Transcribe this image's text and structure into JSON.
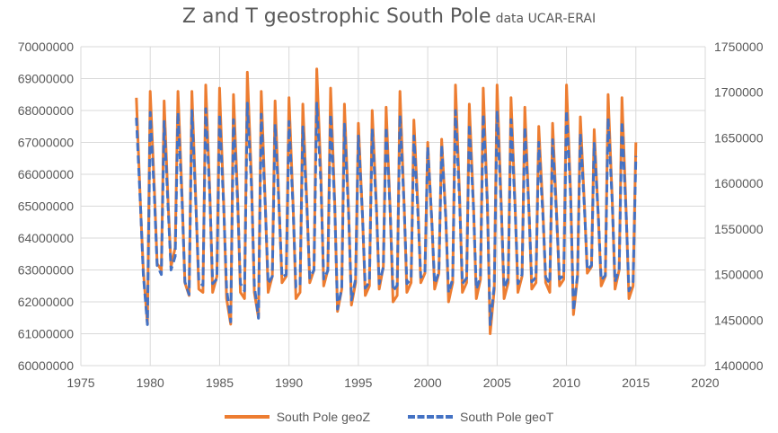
{
  "chart_data": {
    "type": "line",
    "title": "Z and T geostrophic South Pole",
    "subtitle": "data UCAR-ERAI",
    "x_ticks": [
      "1975",
      "1980",
      "1985",
      "1990",
      "1995",
      "2000",
      "2005",
      "2010",
      "2015",
      "2020"
    ],
    "xlim": [
      1975,
      2020
    ],
    "y_left_ticks": [
      "60000000",
      "61000000",
      "62000000",
      "63000000",
      "64000000",
      "65000000",
      "66000000",
      "67000000",
      "68000000",
      "69000000",
      "70000000"
    ],
    "ylim_left": [
      60000000,
      70000000
    ],
    "y_right_ticks": [
      "1400000",
      "1450000",
      "1500000",
      "1550000",
      "1600000",
      "1650000",
      "1700000",
      "1750000"
    ],
    "ylim_right": [
      1400000,
      1750000
    ],
    "grid": true,
    "legend_position": "bottom",
    "series": [
      {
        "name": "South Pole geoZ",
        "axis": "left",
        "color": "#ED7D31",
        "style": "solid",
        "x": [
          1979.0,
          1979.3,
          1979.5,
          1979.8,
          1980.0,
          1980.3,
          1980.5,
          1980.8,
          1981.0,
          1981.3,
          1981.5,
          1981.8,
          1982.0,
          1982.3,
          1982.5,
          1982.8,
          1983.0,
          1983.3,
          1983.5,
          1983.8,
          1984.0,
          1984.3,
          1984.5,
          1984.8,
          1985.0,
          1985.3,
          1985.5,
          1985.8,
          1986.0,
          1986.3,
          1986.5,
          1986.8,
          1987.0,
          1987.3,
          1987.5,
          1987.8,
          1988.0,
          1988.3,
          1988.5,
          1988.8,
          1989.0,
          1989.3,
          1989.5,
          1989.8,
          1990.0,
          1990.3,
          1990.5,
          1990.8,
          1991.0,
          1991.3,
          1991.5,
          1991.8,
          1992.0,
          1992.3,
          1992.5,
          1992.8,
          1993.0,
          1993.3,
          1993.5,
          1993.8,
          1994.0,
          1994.3,
          1994.5,
          1994.8,
          1995.0,
          1995.3,
          1995.5,
          1995.8,
          1996.0,
          1996.3,
          1996.5,
          1996.8,
          1997.0,
          1997.3,
          1997.5,
          1997.8,
          1998.0,
          1998.3,
          1998.5,
          1998.8,
          1999.0,
          1999.3,
          1999.5,
          1999.8,
          2000.0,
          2000.3,
          2000.5,
          2000.8,
          2001.0,
          2001.3,
          2001.5,
          2001.8,
          2002.0,
          2002.3,
          2002.5,
          2002.8,
          2003.0,
          2003.3,
          2003.5,
          2003.8,
          2004.0,
          2004.3,
          2004.5,
          2004.8,
          2005.0,
          2005.3,
          2005.5,
          2005.8,
          2006.0,
          2006.3,
          2006.5,
          2006.8,
          2007.0,
          2007.3,
          2007.5,
          2007.8,
          2008.0,
          2008.3,
          2008.5,
          2008.8,
          2009.0,
          2009.3,
          2009.5,
          2009.8,
          2010.0,
          2010.3,
          2010.5,
          2010.8,
          2011.0,
          2011.3,
          2011.5,
          2011.8,
          2012.0,
          2012.3,
          2012.5,
          2012.8,
          2013.0,
          2013.3,
          2013.5,
          2013.8,
          2014.0,
          2014.3,
          2014.5,
          2014.8,
          2015.0
        ],
        "values": [
          68400000,
          65000000,
          63000000,
          61300000,
          68600000,
          65500000,
          63200000,
          63000000,
          68300000,
          65000000,
          63100000,
          63700000,
          68600000,
          65300000,
          62600000,
          62200000,
          68600000,
          65000000,
          62400000,
          62300000,
          68800000,
          65400000,
          62300000,
          62800000,
          68700000,
          65000000,
          62100000,
          61300000,
          68500000,
          65300000,
          62300000,
          62100000,
          69200000,
          65800000,
          62300000,
          61500000,
          68600000,
          65000000,
          62300000,
          62800000,
          68300000,
          64800000,
          62600000,
          62800000,
          68400000,
          65000000,
          62100000,
          62300000,
          68200000,
          65000000,
          62600000,
          63000000,
          69300000,
          66000000,
          62500000,
          63000000,
          68700000,
          65100000,
          61700000,
          62400000,
          68200000,
          64800000,
          61900000,
          62600000,
          67600000,
          64700000,
          62200000,
          62500000,
          68000000,
          65000000,
          62400000,
          63100000,
          68100000,
          64800000,
          62000000,
          62200000,
          68600000,
          65000000,
          62300000,
          62600000,
          67700000,
          64900000,
          62600000,
          62900000,
          67000000,
          64500000,
          62400000,
          62900000,
          67100000,
          64700000,
          62000000,
          62600000,
          68800000,
          65300000,
          62300000,
          62600000,
          68200000,
          65000000,
          62100000,
          62700000,
          68700000,
          65100000,
          61000000,
          62400000,
          68800000,
          65000000,
          62100000,
          62600000,
          68400000,
          65000000,
          62300000,
          62800000,
          68100000,
          64800000,
          62400000,
          62600000,
          67500000,
          64900000,
          62600000,
          62300000,
          67600000,
          64700000,
          62500000,
          62700000,
          68800000,
          65400000,
          61600000,
          62800000,
          67800000,
          65000000,
          62900000,
          63100000,
          67400000,
          64600000,
          62500000,
          62800000,
          68500000,
          65200000,
          62400000,
          63000000,
          68400000,
          64800000,
          62100000,
          62500000,
          67000000
        ]
      },
      {
        "name": "South Pole geoT",
        "axis": "right",
        "color": "#4472C4",
        "style": "dashed",
        "x": [
          1979.0,
          1979.3,
          1979.5,
          1979.8,
          1980.0,
          1980.3,
          1980.5,
          1980.8,
          1981.0,
          1981.3,
          1981.5,
          1981.8,
          1982.0,
          1982.3,
          1982.5,
          1982.8,
          1983.0,
          1983.3,
          1983.5,
          1983.8,
          1984.0,
          1984.3,
          1984.5,
          1984.8,
          1985.0,
          1985.3,
          1985.5,
          1985.8,
          1986.0,
          1986.3,
          1986.5,
          1986.8,
          1987.0,
          1987.3,
          1987.5,
          1987.8,
          1988.0,
          1988.3,
          1988.5,
          1988.8,
          1989.0,
          1989.3,
          1989.5,
          1989.8,
          1990.0,
          1990.3,
          1990.5,
          1990.8,
          1991.0,
          1991.3,
          1991.5,
          1991.8,
          1992.0,
          1992.3,
          1992.5,
          1992.8,
          1993.0,
          1993.3,
          1993.5,
          1993.8,
          1994.0,
          1994.3,
          1994.5,
          1994.8,
          1995.0,
          1995.3,
          1995.5,
          1995.8,
          1996.0,
          1996.3,
          1996.5,
          1996.8,
          1997.0,
          1997.3,
          1997.5,
          1997.8,
          1998.0,
          1998.3,
          1998.5,
          1998.8,
          1999.0,
          1999.3,
          1999.5,
          1999.8,
          2000.0,
          2000.3,
          2000.5,
          2000.8,
          2001.0,
          2001.3,
          2001.5,
          2001.8,
          2002.0,
          2002.3,
          2002.5,
          2002.8,
          2003.0,
          2003.3,
          2003.5,
          2003.8,
          2004.0,
          2004.3,
          2004.5,
          2004.8,
          2005.0,
          2005.3,
          2005.5,
          2005.8,
          2006.0,
          2006.3,
          2006.5,
          2006.8,
          2007.0,
          2007.3,
          2007.5,
          2007.8,
          2008.0,
          2008.3,
          2008.5,
          2008.8,
          2009.0,
          2009.3,
          2009.5,
          2009.8,
          2010.0,
          2010.3,
          2010.5,
          2010.8,
          2011.0,
          2011.3,
          2011.5,
          2011.8,
          2012.0,
          2012.3,
          2012.5,
          2012.8,
          2013.0,
          2013.3,
          2013.5,
          2013.8,
          2014.0,
          2014.3,
          2014.5,
          2014.8,
          2015.0
        ],
        "values": [
          1672000,
          1575000,
          1500000,
          1445000,
          1678000,
          1585000,
          1510000,
          1500000,
          1668000,
          1570000,
          1505000,
          1520000,
          1678000,
          1580000,
          1492000,
          1478000,
          1680000,
          1572000,
          1492000,
          1488000,
          1682000,
          1585000,
          1490000,
          1495000,
          1676000,
          1572000,
          1485000,
          1448000,
          1670000,
          1580000,
          1490000,
          1482000,
          1688000,
          1595000,
          1488000,
          1452000,
          1676000,
          1572000,
          1490000,
          1498000,
          1665000,
          1568000,
          1497000,
          1500000,
          1668000,
          1572000,
          1486000,
          1488000,
          1662000,
          1572000,
          1496000,
          1505000,
          1688000,
          1600000,
          1495000,
          1504000,
          1676000,
          1575000,
          1462000,
          1485000,
          1665000,
          1565000,
          1472000,
          1495000,
          1652000,
          1565000,
          1485000,
          1492000,
          1660000,
          1572000,
          1490000,
          1508000,
          1662000,
          1568000,
          1482000,
          1488000,
          1675000,
          1574000,
          1490000,
          1495000,
          1652000,
          1565000,
          1497000,
          1502000,
          1640000,
          1558000,
          1490000,
          1502000,
          1642000,
          1562000,
          1480000,
          1495000,
          1680000,
          1580000,
          1490000,
          1496000,
          1665000,
          1572000,
          1484000,
          1497000,
          1676000,
          1578000,
          1445000,
          1488000,
          1680000,
          1572000,
          1485000,
          1496000,
          1670000,
          1572000,
          1490000,
          1500000,
          1662000,
          1568000,
          1492000,
          1497000,
          1645000,
          1565000,
          1497000,
          1490000,
          1648000,
          1560000,
          1495000,
          1499000,
          1680000,
          1585000,
          1460000,
          1500000,
          1655000,
          1572000,
          1505000,
          1510000,
          1644000,
          1562000,
          1494000,
          1499000,
          1672000,
          1580000,
          1492000,
          1505000,
          1668000,
          1565000,
          1482000,
          1492000,
          1630000
        ]
      }
    ]
  }
}
